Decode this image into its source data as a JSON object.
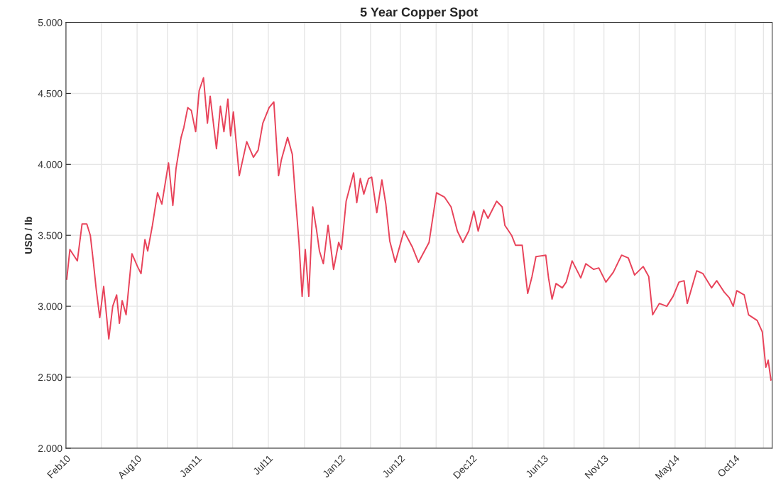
{
  "chart_data": {
    "type": "line",
    "title": "5 Year Copper Spot",
    "ylabel": "USD / lb",
    "x": [
      "2010-02-03",
      "2010-02-11",
      "2010-03-02",
      "2010-03-14",
      "2010-03-26",
      "2010-04-04",
      "2010-04-11",
      "2010-04-19",
      "2010-04-28",
      "2010-05-08",
      "2010-05-21",
      "2010-05-31",
      "2010-06-10",
      "2010-06-17",
      "2010-06-24",
      "2010-07-04",
      "2010-07-19",
      "2010-08-02",
      "2010-08-11",
      "2010-08-21",
      "2010-08-28",
      "2010-09-09",
      "2010-09-22",
      "2010-10-03",
      "2010-10-10",
      "2010-10-20",
      "2010-10-31",
      "2010-11-08",
      "2010-11-21",
      "2010-11-28",
      "2010-12-08",
      "2010-12-17",
      "2010-12-28",
      "2011-01-06",
      "2011-01-17",
      "2011-01-27",
      "2011-02-03",
      "2011-02-19",
      "2011-03-01",
      "2011-03-10",
      "2011-03-20",
      "2011-03-27",
      "2011-04-03",
      "2011-04-18",
      "2011-05-07",
      "2011-05-24",
      "2011-06-05",
      "2011-06-17",
      "2011-07-03",
      "2011-07-15",
      "2011-07-27",
      "2011-08-03",
      "2011-08-19",
      "2011-08-31",
      "2011-09-07",
      "2011-09-17",
      "2011-09-25",
      "2011-10-03",
      "2011-10-12",
      "2011-10-22",
      "2011-10-31",
      "2011-11-08",
      "2011-11-18",
      "2011-11-30",
      "2011-12-14",
      "2011-12-27",
      "2012-01-03",
      "2012-01-15",
      "2012-02-03",
      "2012-02-11",
      "2012-02-20",
      "2012-02-29",
      "2012-03-12",
      "2012-03-20",
      "2012-04-02",
      "2012-04-15",
      "2012-04-25",
      "2012-05-05",
      "2012-05-19",
      "2012-05-27",
      "2012-06-10",
      "2012-07-01",
      "2012-07-17",
      "2012-08-13",
      "2012-09-01",
      "2012-09-21",
      "2012-10-08",
      "2012-10-24",
      "2012-11-07",
      "2012-11-22",
      "2012-12-05",
      "2012-12-16",
      "2012-12-30",
      "2013-01-10",
      "2013-02-01",
      "2013-02-15",
      "2013-02-22",
      "2013-03-11",
      "2013-03-21",
      "2013-04-07",
      "2013-04-21",
      "2013-05-02",
      "2013-05-12",
      "2013-06-06",
      "2013-06-13",
      "2013-06-22",
      "2013-07-02",
      "2013-07-18",
      "2013-07-28",
      "2013-08-12",
      "2013-09-03",
      "2013-09-16",
      "2013-10-06",
      "2013-10-19",
      "2013-11-06",
      "2013-11-25",
      "2013-12-16",
      "2014-01-02",
      "2014-01-18",
      "2014-02-09",
      "2014-02-23",
      "2014-03-05",
      "2014-03-22",
      "2014-04-10",
      "2014-04-26",
      "2014-05-11",
      "2014-05-24",
      "2014-06-01",
      "2014-06-25",
      "2014-07-11",
      "2014-08-02",
      "2014-08-15",
      "2014-09-03",
      "2014-09-16",
      "2014-09-26",
      "2014-10-05",
      "2014-10-24",
      "2014-11-04",
      "2014-11-26",
      "2014-12-09",
      "2014-12-18",
      "2014-12-24",
      "2014-12-31"
    ],
    "series": [
      {
        "color": "#e8435a",
        "values": [
          3.19,
          3.4,
          3.32,
          3.58,
          3.58,
          3.5,
          3.33,
          3.12,
          2.92,
          3.14,
          2.77,
          3.0,
          3.08,
          2.88,
          3.04,
          2.94,
          3.37,
          3.28,
          3.23,
          3.47,
          3.39,
          3.57,
          3.8,
          3.72,
          3.84,
          4.01,
          3.71,
          3.97,
          4.19,
          4.26,
          4.4,
          4.38,
          4.23,
          4.52,
          4.61,
          4.29,
          4.48,
          4.11,
          4.41,
          4.23,
          4.46,
          4.2,
          4.37,
          3.92,
          4.16,
          4.05,
          4.1,
          4.29,
          4.4,
          4.44,
          3.92,
          4.03,
          4.19,
          4.07,
          3.8,
          3.45,
          3.07,
          3.4,
          3.07,
          3.7,
          3.55,
          3.39,
          3.3,
          3.57,
          3.26,
          3.45,
          3.4,
          3.74,
          3.94,
          3.73,
          3.9,
          3.79,
          3.9,
          3.91,
          3.66,
          3.89,
          3.72,
          3.46,
          3.31,
          3.39,
          3.53,
          3.42,
          3.31,
          3.45,
          3.8,
          3.77,
          3.7,
          3.53,
          3.45,
          3.53,
          3.67,
          3.53,
          3.68,
          3.62,
          3.74,
          3.7,
          3.57,
          3.5,
          3.43,
          3.43,
          3.09,
          3.21,
          3.35,
          3.36,
          3.2,
          3.05,
          3.16,
          3.13,
          3.17,
          3.32,
          3.2,
          3.3,
          3.26,
          3.27,
          3.17,
          3.24,
          3.36,
          3.34,
          3.22,
          3.28,
          3.21,
          2.94,
          3.02,
          3.0,
          3.07,
          3.17,
          3.18,
          3.02,
          3.25,
          3.23,
          3.13,
          3.18,
          3.1,
          3.06,
          3.0,
          3.11,
          3.08,
          2.94,
          2.9,
          2.82,
          2.57,
          2.62,
          2.48
        ]
      }
    ],
    "xlim": [
      "2010-02-01",
      "2015-01-03"
    ],
    "xticks": [
      {
        "value": "2010-02-01",
        "label": "Feb10"
      },
      {
        "value": "2010-05-02",
        "label": null
      },
      {
        "value": "2010-08-01",
        "label": "Aug10"
      },
      {
        "value": "2010-10-17",
        "label": null
      },
      {
        "value": "2011-01-01",
        "label": "Jan11"
      },
      {
        "value": "2011-04-01",
        "label": null
      },
      {
        "value": "2011-07-01",
        "label": "Jul11"
      },
      {
        "value": "2011-10-01",
        "label": null
      },
      {
        "value": "2012-01-01",
        "label": "Jan12"
      },
      {
        "value": "2012-03-17",
        "label": null
      },
      {
        "value": "2012-06-01",
        "label": "Jun12"
      },
      {
        "value": "2012-08-31",
        "label": null
      },
      {
        "value": "2012-12-01",
        "label": "Dec12"
      },
      {
        "value": "2013-03-02",
        "label": null
      },
      {
        "value": "2013-06-01",
        "label": "Jun13"
      },
      {
        "value": "2013-08-17",
        "label": null
      },
      {
        "value": "2013-11-01",
        "label": "Nov13"
      },
      {
        "value": "2014-01-30",
        "label": null
      },
      {
        "value": "2014-05-01",
        "label": "May14"
      },
      {
        "value": "2014-07-17",
        "label": null
      },
      {
        "value": "2014-10-01",
        "label": "Oct14"
      },
      {
        "value": "2014-12-12",
        "label": null
      }
    ],
    "ylim": [
      2,
      5
    ],
    "yticks": [
      {
        "value": 2,
        "label": "2.000"
      },
      {
        "value": 2.5,
        "label": "2.500"
      },
      {
        "value": 3,
        "label": "3.000"
      },
      {
        "value": 3.5,
        "label": "3.500"
      },
      {
        "value": 4,
        "label": "4.000"
      },
      {
        "value": 4.5,
        "label": "4.500"
      },
      {
        "value": 5,
        "label": "5.000"
      }
    ],
    "grid": true,
    "marker": "none",
    "line_style": "solid"
  }
}
